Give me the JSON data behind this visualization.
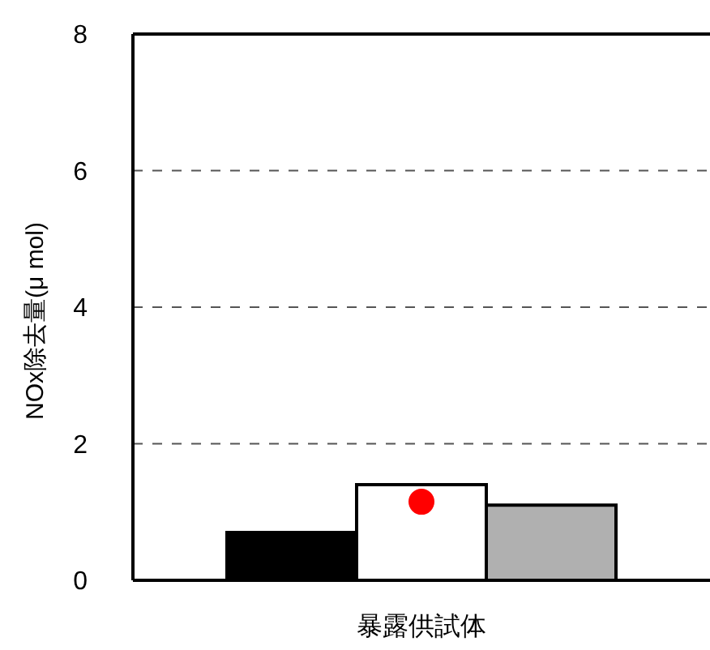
{
  "chart_data": {
    "type": "bar",
    "ylabel": "NOx除去量(μ mol)",
    "categories": [
      "暴露供試体"
    ],
    "series": [
      {
        "color": "#000000",
        "values": [
          0.7
        ]
      },
      {
        "color": "#ffffff",
        "values": [
          1.4
        ]
      },
      {
        "color": "#b0b0b0",
        "values": [
          1.1
        ]
      },
      {
        "type": "scatter",
        "color": "#ff0000",
        "x": [
          "暴露供試体"
        ],
        "values": [
          1.15
        ],
        "marker": "circle"
      }
    ],
    "ylim": [
      0,
      8
    ],
    "yticks": [
      0,
      2,
      4,
      6,
      8
    ],
    "grid": "y",
    "line_style": "dashed",
    "legend": false
  }
}
